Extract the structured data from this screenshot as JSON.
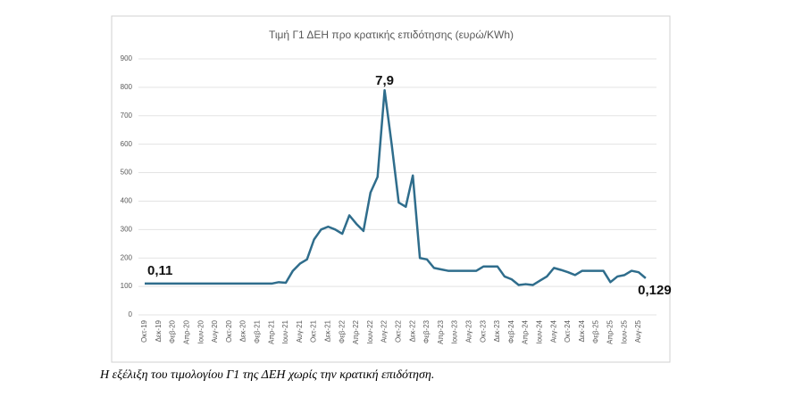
{
  "chart_data": {
    "type": "line",
    "title": "Τιμή Γ1 ΔΕΗ προ κρατικής επιδότησης (ευρώ/KWh)",
    "categories": [
      "Οκτ-19",
      null,
      "Δεκ-19",
      null,
      "Φεβ-20",
      null,
      "Απρ-20",
      null,
      "Ιουν-20",
      null,
      "Αυγ-20",
      null,
      "Οκτ-20",
      null,
      "Δεκ-20",
      null,
      "Φεβ-21",
      null,
      "Απρ-21",
      null,
      "Ιουν-21",
      null,
      "Αυγ-21",
      null,
      "Οκτ-21",
      null,
      "Δεκ-21",
      null,
      "Φεβ-22",
      null,
      "Απρ-22",
      null,
      "Ιουν-22",
      null,
      "Αυγ-22",
      null,
      "Οκτ-22",
      null,
      "Δεκ-22",
      null,
      "Φεβ-23",
      null,
      "Απρ-23",
      null,
      "Ιουν-23",
      null,
      "Αυγ-23",
      null,
      "Οκτ-23",
      null,
      "Δεκ-23",
      null,
      "Φεβ-24",
      null,
      "Απρ-24",
      null,
      "Ιουν-24",
      null,
      "Αυγ-24",
      null,
      "Οκτ-24",
      null,
      "Δεκ-24",
      null,
      "Φεβ-25",
      null,
      "Απρ-25",
      null,
      "Ιουν-25",
      null,
      "Αυγ-25",
      null
    ],
    "series": [
      {
        "name": "Τιμή Γ1",
        "color": "#2f6d8c",
        "values": [
          110,
          110,
          110,
          110,
          110,
          110,
          110,
          110,
          110,
          110,
          110,
          110,
          110,
          110,
          110,
          110,
          110,
          110,
          110,
          115,
          113,
          155,
          180,
          195,
          265,
          300,
          310,
          300,
          285,
          350,
          320,
          295,
          430,
          485,
          790,
          600,
          395,
          380,
          490,
          200,
          195,
          165,
          160,
          155,
          155,
          155,
          155,
          155,
          170,
          170,
          170,
          135,
          125,
          105,
          108,
          105,
          120,
          135,
          165,
          158,
          150,
          140,
          155,
          155,
          155,
          155,
          115,
          135,
          140,
          155,
          150,
          129
        ]
      }
    ],
    "ylim": [
      0,
      900
    ],
    "yticks": [
      0,
      100,
      200,
      300,
      400,
      500,
      600,
      700,
      800,
      900
    ],
    "grid": true,
    "annotations": [
      "0,11",
      "7,9",
      "0,129"
    ]
  },
  "caption": "Η εξέλιξη του τιμολογίου Γ1 της ΔΕΗ χωρίς την κρατική επιδότηση."
}
